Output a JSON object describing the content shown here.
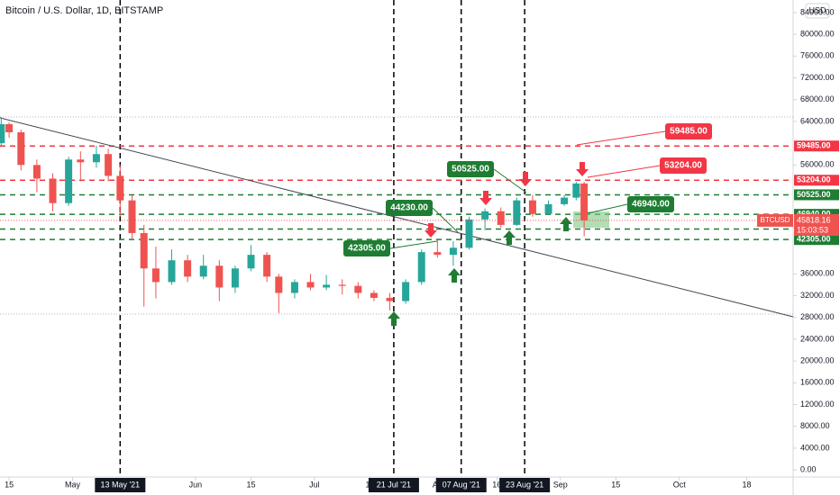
{
  "chart_data": {
    "type": "candlestick",
    "title": "Bitcoin / U.S. Dollar, 1D, BITSTAMP",
    "currency": "USD",
    "symbol": "BTCUSD",
    "last_price": 45818.16,
    "countdown": "15:03:53",
    "up_color": "#26a69a",
    "down_color": "#ef5350",
    "xlim": [
      -2.3,
      197.7
    ],
    "ylim": [
      -1300,
      86300
    ],
    "xticks": [
      {
        "value": 0,
        "label": "15"
      },
      {
        "value": 16,
        "label": "May"
      },
      {
        "value": 47,
        "label": "Jun"
      },
      {
        "value": 61,
        "label": "15"
      },
      {
        "value": 77,
        "label": "Jul"
      },
      {
        "value": 91,
        "label": "15"
      },
      {
        "value": 108,
        "label": "Au"
      },
      {
        "value": 123,
        "label": "16"
      },
      {
        "value": 139,
        "label": "Sep"
      },
      {
        "value": 153,
        "label": "15"
      },
      {
        "value": 169,
        "label": "Oct"
      },
      {
        "value": 186,
        "label": "18"
      }
    ],
    "yticks": [
      {
        "value": 0,
        "label": "0.00"
      },
      {
        "value": 4000,
        "label": "4000.00"
      },
      {
        "value": 8000,
        "label": "8000.00"
      },
      {
        "value": 12000,
        "label": "12000.00"
      },
      {
        "value": 16000,
        "label": "16000.00"
      },
      {
        "value": 20000,
        "label": "20000.00"
      },
      {
        "value": 24000,
        "label": "24000.00"
      },
      {
        "value": 28000,
        "label": "28000.00"
      },
      {
        "value": 32000,
        "label": "32000.00"
      },
      {
        "value": 36000,
        "label": "36000.00"
      },
      {
        "value": 56000,
        "label": "56000.00"
      },
      {
        "value": 64000,
        "label": "64000.00"
      },
      {
        "value": 68000,
        "label": "68000.00"
      },
      {
        "value": 72000,
        "label": "72000.00"
      },
      {
        "value": 76000,
        "label": "76000.00"
      },
      {
        "value": 80000,
        "label": "80000.00"
      },
      {
        "value": 84000,
        "label": "84000.00"
      }
    ],
    "vlines": [
      {
        "value": 28,
        "label": "13 May '21"
      },
      {
        "value": 97,
        "label": "21 Jul '21"
      },
      {
        "value": 114,
        "label": "07 Aug '21"
      },
      {
        "value": 130,
        "label": "23 Aug '21"
      }
    ],
    "levels": [
      {
        "value": 59485,
        "label": "59485.00",
        "color": "#f23645"
      },
      {
        "value": 53204,
        "label": "53204.00",
        "color": "#f23645"
      },
      {
        "value": 50525,
        "label": "50525.00",
        "color": "#1e7d32"
      },
      {
        "value": 46940,
        "label": "46940.00",
        "color": "#1e7d32"
      },
      {
        "value": 44230,
        "label": "44230.00",
        "color": "#1e7d32"
      },
      {
        "value": 42305,
        "label": "42305.00",
        "color": "#1e7d32"
      }
    ],
    "x": [
      -2,
      0,
      3,
      7,
      11,
      15,
      18,
      22,
      25,
      28,
      31,
      34,
      37,
      41,
      45,
      49,
      53,
      57,
      61,
      65,
      68,
      72,
      76,
      80,
      84,
      88,
      92,
      96,
      100,
      104,
      108,
      112,
      116,
      120,
      124,
      128,
      132,
      136,
      140,
      143,
      145
    ],
    "open": [
      60000,
      63500,
      62000,
      56000,
      53500,
      49000,
      57000,
      56500,
      58000,
      54000,
      49500,
      43500,
      37000,
      34500,
      38500,
      35500,
      37500,
      33500,
      37000,
      39500,
      35500,
      32500,
      34500,
      33500,
      34000,
      33800,
      32500,
      31600,
      31000,
      34500,
      40000,
      39500,
      40800,
      46000,
      47500,
      45000,
      49500,
      47000,
      48800,
      50000,
      52600
    ],
    "high": [
      64800,
      63800,
      62500,
      57000,
      54500,
      57500,
      58500,
      59500,
      59000,
      56000,
      50500,
      45000,
      41000,
      40500,
      39500,
      39500,
      38500,
      37500,
      41300,
      40000,
      36000,
      35000,
      36000,
      35800,
      35000,
      34500,
      33000,
      32500,
      35000,
      40500,
      42500,
      42000,
      46500,
      48000,
      48200,
      50000,
      50500,
      49500,
      50500,
      52900,
      52900
    ],
    "low": [
      59500,
      61000,
      55000,
      51000,
      47500,
      48500,
      53000,
      55500,
      53000,
      46500,
      42500,
      30000,
      31500,
      34000,
      34500,
      35000,
      31000,
      32500,
      36500,
      34500,
      28800,
      31500,
      33000,
      33000,
      32200,
      31500,
      31000,
      29300,
      30500,
      34000,
      39000,
      37500,
      40500,
      44000,
      44500,
      44800,
      46500,
      47000,
      48500,
      49500,
      42900
    ],
    "close": [
      63500,
      62000,
      56000,
      53500,
      49000,
      57000,
      56500,
      58000,
      54000,
      49500,
      43500,
      37000,
      34500,
      38500,
      35500,
      37500,
      33500,
      37000,
      39500,
      35500,
      32500,
      34500,
      33500,
      34000,
      33800,
      32500,
      31600,
      31000,
      34500,
      40000,
      39500,
      40800,
      46000,
      47500,
      45000,
      49500,
      47000,
      48800,
      50000,
      52600,
      45818.16
    ]
  }
}
